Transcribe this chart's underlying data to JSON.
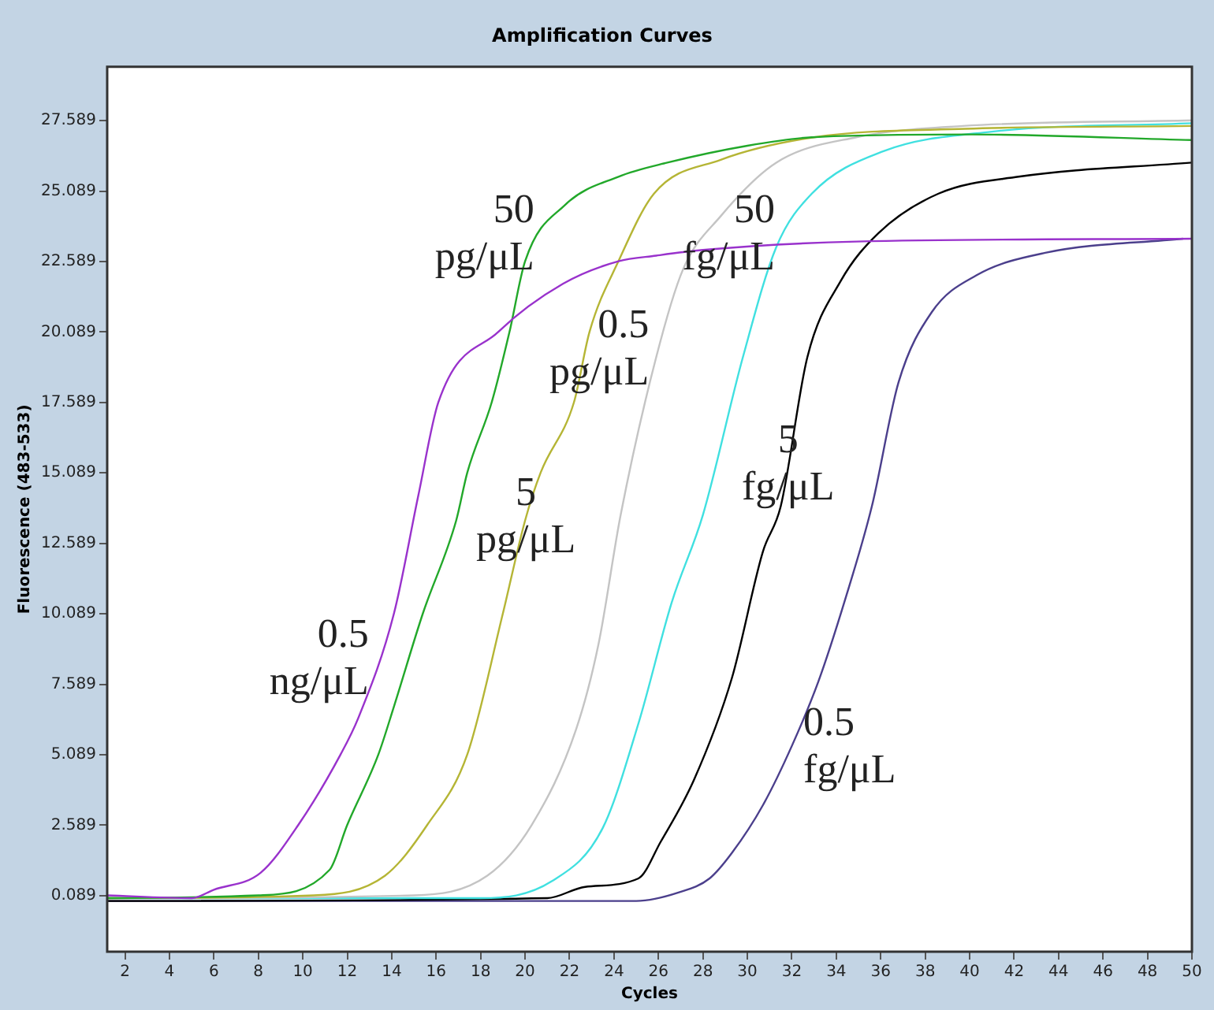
{
  "chart_data": {
    "type": "line",
    "title": "Amplification Curves",
    "xlabel": "Cycles",
    "ylabel": "Fluorescence (483-533)",
    "xlim": [
      1.2,
      50
    ],
    "ylim": [
      -1.9,
      29.5
    ],
    "xticks": [
      2,
      4,
      6,
      8,
      10,
      12,
      14,
      16,
      18,
      20,
      22,
      24,
      26,
      28,
      30,
      32,
      34,
      36,
      38,
      40,
      42,
      44,
      46,
      48,
      50
    ],
    "yticks": [
      0.089,
      2.589,
      5.089,
      7.589,
      10.089,
      12.589,
      15.089,
      17.589,
      20.089,
      22.589,
      25.089,
      27.589
    ],
    "grid": false,
    "legend": false,
    "marker": "none",
    "line_style": "solid",
    "series": [
      {
        "name": "0.5 ng/μL",
        "color": "#9932cc",
        "x": [
          1.2,
          5,
          6,
          8.1,
          9.8,
          11.7,
          12.5,
          14.1,
          15.2,
          16.1,
          18.8,
          21.7,
          24.2,
          25.9,
          28,
          34.9,
          50
        ],
        "values": [
          0.1,
          0.0,
          0.3,
          0.9,
          2.6,
          5.1,
          6.4,
          10.1,
          14.3,
          17.6,
          20.1,
          21.8,
          22.6,
          22.8,
          23.0,
          23.3,
          23.4
        ]
      },
      {
        "name": "50 pg/μL",
        "color": "#22a82a",
        "x": [
          1.2,
          8,
          11.2,
          12,
          13.4,
          14.1,
          15.4,
          16.9,
          17.4,
          18.5,
          19.3,
          20,
          21.8,
          24.2,
          26.4,
          30,
          32.9,
          40,
          50
        ],
        "values": [
          0.0,
          0.1,
          1.0,
          2.6,
          5.1,
          6.8,
          10.1,
          13.4,
          15.1,
          17.6,
          20.1,
          22.6,
          24.6,
          25.6,
          26.1,
          26.7,
          27.0,
          27.1,
          26.9
        ]
      },
      {
        "name": "5 pg/μL",
        "color": "#b5b535",
        "x": [
          1.2,
          10.5,
          13.7,
          15.6,
          17.4,
          19,
          20,
          20.7,
          22.2,
          22.9,
          24.2,
          25.8,
          28.8,
          33,
          39.8,
          50
        ],
        "values": [
          0.0,
          0.1,
          0.8,
          2.6,
          5.1,
          10.1,
          13.4,
          15.1,
          17.6,
          20.1,
          22.6,
          25.0,
          26.2,
          27.0,
          27.3,
          27.4
        ]
      },
      {
        "name": "0.5 pg/μL",
        "color": "#c4c4c4",
        "x": [
          1.2,
          15,
          18.3,
          20.3,
          22.3,
          23.3,
          24.3,
          25.9,
          27.1,
          28.8,
          31.3,
          34.9,
          39.7,
          50
        ],
        "values": [
          0.0,
          0.1,
          0.8,
          2.6,
          6.0,
          9.0,
          13.6,
          19.2,
          22.3,
          24.2,
          26.1,
          27.0,
          27.4,
          27.6
        ]
      },
      {
        "name": "50 fg/μL",
        "color": "#40e0e0",
        "x": [
          1.2,
          18,
          21.2,
          23.5,
          25.1,
          26.6,
          28,
          29.8,
          31.3,
          32.9,
          36.1,
          41,
          50
        ],
        "values": [
          0.0,
          0.0,
          0.6,
          2.5,
          6.2,
          10.5,
          13.6,
          19.2,
          23.1,
          25.0,
          26.5,
          27.2,
          27.5
        ]
      },
      {
        "name": "5 fg/μL",
        "color": "#000000",
        "x": [
          1.2,
          21,
          22.7,
          25.1,
          26.1,
          27.6,
          29.3,
          30.7,
          31.5,
          32.7,
          34.2,
          35.9,
          38.6,
          42.2,
          50
        ],
        "values": [
          -0.1,
          0.0,
          0.4,
          0.7,
          2.0,
          4.2,
          7.8,
          12.3,
          13.9,
          19.2,
          21.9,
          23.6,
          25.0,
          25.6,
          26.1
        ]
      },
      {
        "name": "0.5 fg/μL",
        "color": "#4b3f8c",
        "x": [
          1.2,
          25,
          26.9,
          28.3,
          29.3,
          30.7,
          32,
          33.2,
          34.4,
          35.6,
          36.8,
          38.3,
          40.3,
          43.4,
          49.6
        ],
        "values": [
          -0.1,
          -0.1,
          0.2,
          0.7,
          1.6,
          3.3,
          5.4,
          7.7,
          10.6,
          13.9,
          18.3,
          20.8,
          22.1,
          22.9,
          23.4
        ]
      }
    ]
  }
}
